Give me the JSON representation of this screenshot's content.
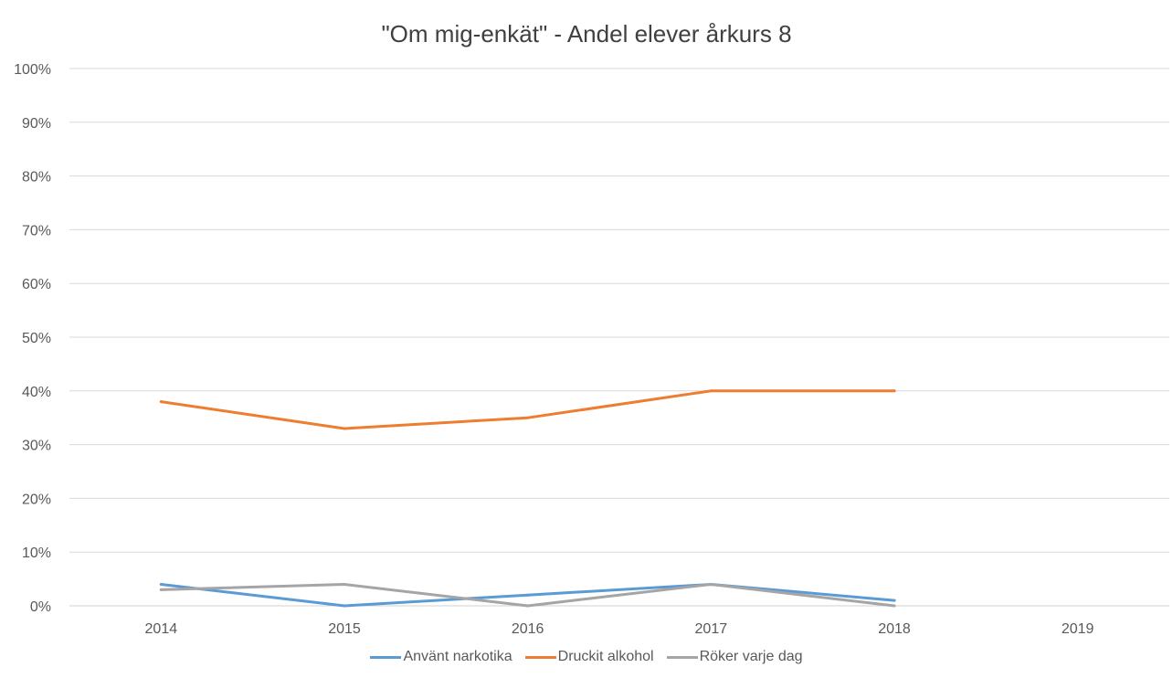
{
  "chart_data": {
    "type": "line",
    "title": "\"Om mig-enkät\" - Andel elever årkurs 8",
    "xlabel": "",
    "ylabel": "",
    "categories": [
      "2014",
      "2015",
      "2016",
      "2017",
      "2018",
      "2019"
    ],
    "ylim": [
      0,
      100
    ],
    "y_ticks": [
      "0%",
      "10%",
      "20%",
      "30%",
      "40%",
      "50%",
      "60%",
      "70%",
      "80%",
      "90%",
      "100%"
    ],
    "grid": true,
    "legend_position": "bottom",
    "series": [
      {
        "name": "Använt narkotika",
        "color": "#5B9BD5",
        "values": [
          4,
          0,
          2,
          4,
          1,
          null
        ]
      },
      {
        "name": "Druckit alkohol",
        "color": "#ED7D31",
        "values": [
          38,
          33,
          35,
          40,
          40,
          null
        ]
      },
      {
        "name": "Röker varje dag",
        "color": "#A5A5A5",
        "values": [
          3,
          4,
          0,
          4,
          0,
          null
        ]
      }
    ]
  }
}
